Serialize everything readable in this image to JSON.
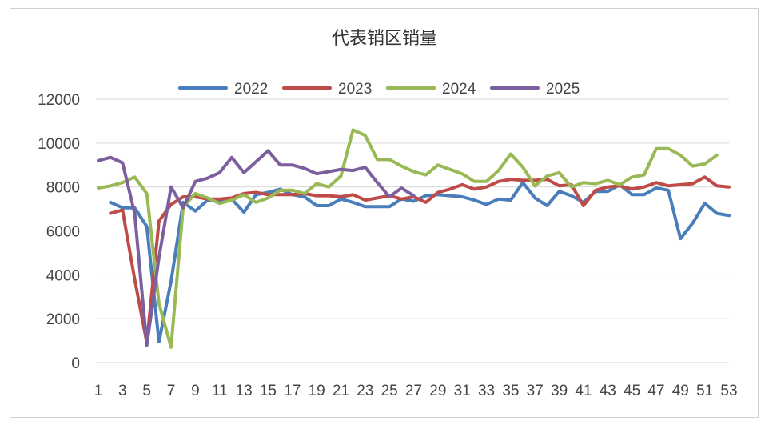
{
  "chart_data": {
    "type": "line",
    "title": "代表销区销量",
    "xlabel": "",
    "ylabel": "",
    "ylim": [
      0,
      12000
    ],
    "yticks": [
      "0",
      "2000",
      "4000",
      "6000",
      "8000",
      "10000",
      "12000"
    ],
    "xlim": [
      1,
      53
    ],
    "xticks": [
      "1",
      "3",
      "5",
      "7",
      "9",
      "11",
      "13",
      "15",
      "17",
      "19",
      "21",
      "23",
      "25",
      "27",
      "29",
      "31",
      "33",
      "35",
      "37",
      "39",
      "41",
      "43",
      "45",
      "47",
      "49",
      "51",
      "53"
    ],
    "grid": true,
    "legend": "top",
    "series": [
      {
        "name": "2022",
        "color": "#4a7ebb",
        "values": [
          null,
          7300,
          7050,
          7050,
          6200,
          950,
          3700,
          7300,
          6900,
          7400,
          7350,
          7450,
          6850,
          7650,
          7750,
          7900,
          7650,
          7550,
          7150,
          7150,
          7450,
          7300,
          7100,
          7100,
          7100,
          7450,
          7350,
          7600,
          7650,
          7600,
          7550,
          7400,
          7200,
          7450,
          7400,
          8200,
          7500,
          7150,
          7800,
          7600,
          7300,
          7800,
          7800,
          8100,
          7650,
          7650,
          7950,
          7850,
          5650,
          6350,
          7250,
          6800,
          6700
        ]
      },
      {
        "name": "2023",
        "color": "#be4b48",
        "values": [
          null,
          6800,
          6950,
          3800,
          900,
          6450,
          7200,
          7550,
          7550,
          7450,
          7450,
          7500,
          7700,
          7750,
          7650,
          7650,
          7650,
          7700,
          7600,
          7600,
          7550,
          7650,
          7400,
          7500,
          7600,
          7450,
          7550,
          7300,
          7750,
          7900,
          8100,
          7900,
          8000,
          8250,
          8350,
          8300,
          8300,
          8350,
          8050,
          8100,
          7150,
          7850,
          8000,
          8050,
          7900,
          8000,
          8200,
          8050,
          8100,
          8150,
          8450,
          8050,
          8000
        ]
      },
      {
        "name": "2024",
        "color": "#98b954",
        "values": [
          7950,
          8050,
          8200,
          8450,
          7700,
          2700,
          700,
          7100,
          7700,
          7500,
          7250,
          7400,
          7650,
          7300,
          7500,
          7850,
          7850,
          7700,
          8150,
          8000,
          8500,
          10600,
          10350,
          9250,
          9250,
          8950,
          8700,
          8550,
          9000,
          8800,
          8600,
          8250,
          8250,
          8750,
          9500,
          8900,
          8050,
          8500,
          8650,
          8000,
          8200,
          8150,
          8300,
          8100,
          8450,
          8550,
          9750,
          9750,
          9450,
          8950,
          9050,
          9450,
          null
        ]
      },
      {
        "name": "2025",
        "color": "#7d5fa0",
        "values": [
          9200,
          9350,
          9100,
          6800,
          800,
          4800,
          8000,
          7050,
          8250,
          8400,
          8650,
          9350,
          8650,
          9150,
          9650,
          9000,
          9000,
          8850,
          8600,
          8700,
          8800,
          8750,
          8900,
          8200,
          7550,
          7950,
          7600,
          null,
          null,
          null,
          null,
          null,
          null,
          null,
          null,
          null,
          null,
          null,
          null,
          null,
          null,
          null,
          null,
          null,
          null,
          null,
          null,
          null,
          null,
          null,
          null,
          null,
          null
        ]
      }
    ]
  }
}
